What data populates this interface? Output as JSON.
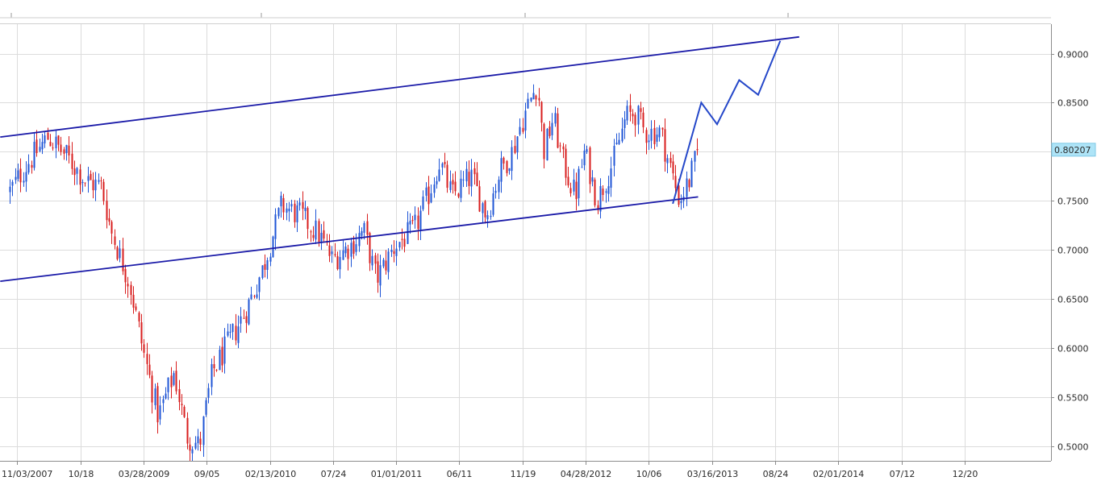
{
  "chart_data": {
    "type": "candlestick",
    "title": "",
    "xlabel": "",
    "ylabel": "",
    "x_tick_labels": [
      "11/03/2007",
      "10/18",
      "03/28/2009",
      "09/05",
      "02/13/2010",
      "07/24",
      "01/01/2011",
      "06/11",
      "11/19",
      "04/28/2012",
      "10/06",
      "03/16/2013",
      "08/24",
      "02/01/2014",
      "07/12",
      "12/20"
    ],
    "y_tick_labels": [
      "0.9000",
      "0.8500",
      "0.8000",
      "0.7500",
      "0.7000",
      "0.6500",
      "0.6000",
      "0.5500",
      "0.5000"
    ],
    "ylim": [
      0.485,
      0.93
    ],
    "grid": true,
    "last_price": "0.80207",
    "last_price_value": 0.80207,
    "colors": {
      "up_candle": "#1f55d6",
      "down_candle": "#d81e1e",
      "trendline": "#1a1aa8",
      "projection": "#2447c9",
      "price_tag_bg": "#aee4f7",
      "grid": "#dcdcdc"
    },
    "close_path": [
      {
        "t": 0,
        "y": 0.76
      },
      {
        "t": 0.3,
        "y": 0.79
      },
      {
        "t": 0.6,
        "y": 0.815
      },
      {
        "t": 0.9,
        "y": 0.795
      },
      {
        "t": 1.2,
        "y": 0.77
      },
      {
        "t": 1.45,
        "y": 0.765
      },
      {
        "t": 1.6,
        "y": 0.72
      },
      {
        "t": 1.9,
        "y": 0.665
      },
      {
        "t": 2.1,
        "y": 0.6
      },
      {
        "t": 2.35,
        "y": 0.53
      },
      {
        "t": 2.6,
        "y": 0.575
      },
      {
        "t": 2.8,
        "y": 0.51
      },
      {
        "t": 3.0,
        "y": 0.5
      },
      {
        "t": 3.2,
        "y": 0.575
      },
      {
        "t": 3.5,
        "y": 0.61
      },
      {
        "t": 3.75,
        "y": 0.64
      },
      {
        "t": 4.0,
        "y": 0.68
      },
      {
        "t": 4.3,
        "y": 0.745
      },
      {
        "t": 4.6,
        "y": 0.735
      },
      {
        "t": 4.9,
        "y": 0.715
      },
      {
        "t": 5.1,
        "y": 0.69
      },
      {
        "t": 5.4,
        "y": 0.705
      },
      {
        "t": 5.6,
        "y": 0.72
      },
      {
        "t": 5.8,
        "y": 0.67
      },
      {
        "t": 6.1,
        "y": 0.705
      },
      {
        "t": 6.4,
        "y": 0.72
      },
      {
        "t": 6.65,
        "y": 0.76
      },
      {
        "t": 6.8,
        "y": 0.79
      },
      {
        "t": 7.0,
        "y": 0.755
      },
      {
        "t": 7.3,
        "y": 0.775
      },
      {
        "t": 7.55,
        "y": 0.735
      },
      {
        "t": 7.75,
        "y": 0.78
      },
      {
        "t": 7.95,
        "y": 0.8
      },
      {
        "t": 8.1,
        "y": 0.83
      },
      {
        "t": 8.25,
        "y": 0.855
      },
      {
        "t": 8.35,
        "y": 0.87
      },
      {
        "t": 8.45,
        "y": 0.8
      },
      {
        "t": 8.6,
        "y": 0.835
      },
      {
        "t": 8.75,
        "y": 0.79
      },
      {
        "t": 8.95,
        "y": 0.755
      },
      {
        "t": 9.1,
        "y": 0.8
      },
      {
        "t": 9.3,
        "y": 0.75
      },
      {
        "t": 9.55,
        "y": 0.79
      },
      {
        "t": 9.75,
        "y": 0.835
      },
      {
        "t": 9.9,
        "y": 0.84
      },
      {
        "t": 10.05,
        "y": 0.82
      },
      {
        "t": 10.3,
        "y": 0.82
      },
      {
        "t": 10.45,
        "y": 0.785
      },
      {
        "t": 10.6,
        "y": 0.75
      },
      {
        "t": 10.75,
        "y": 0.77
      },
      {
        "t": 10.9,
        "y": 0.802
      }
    ],
    "trendlines": [
      {
        "name": "upper-channel",
        "points": [
          {
            "t": -0.15,
            "y": 0.815
          },
          {
            "t": 12.5,
            "y": 0.917
          }
        ]
      },
      {
        "name": "lower-channel",
        "points": [
          {
            "t": -0.15,
            "y": 0.668
          },
          {
            "t": 10.9,
            "y": 0.754
          }
        ]
      },
      {
        "name": "projection",
        "points": [
          {
            "t": 10.5,
            "y": 0.747
          },
          {
            "t": 10.95,
            "y": 0.85
          },
          {
            "t": 11.2,
            "y": 0.828
          },
          {
            "t": 11.55,
            "y": 0.873
          },
          {
            "t": 11.85,
            "y": 0.858
          },
          {
            "t": 12.2,
            "y": 0.913
          }
        ]
      }
    ]
  }
}
